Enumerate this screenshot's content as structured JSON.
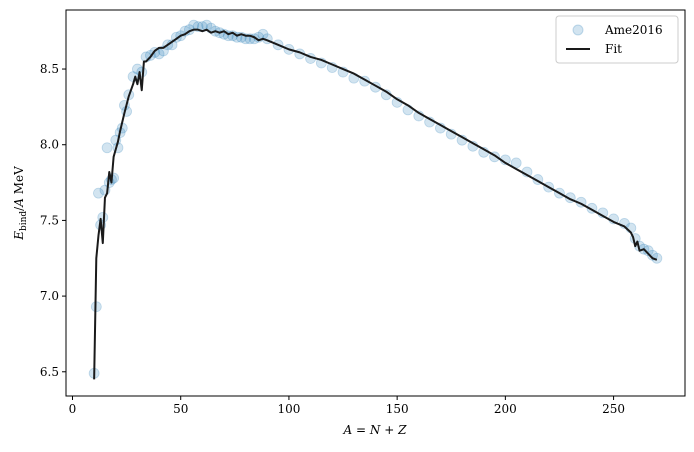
{
  "chart_data": {
    "type": "scatter",
    "xlabel": "A = N + Z",
    "ylabel": "E_bind / A MeV",
    "xlim": [
      -3,
      283
    ],
    "ylim": [
      6.34,
      8.89
    ],
    "xticks": [
      0,
      50,
      100,
      150,
      200,
      250
    ],
    "yticks": [
      6.5,
      7.0,
      7.5,
      8.0,
      8.5
    ],
    "xtick_labels": [
      "0",
      "50",
      "100",
      "150",
      "200",
      "250"
    ],
    "ytick_labels": [
      "6.5",
      "7.0",
      "7.5",
      "8.0",
      "8.5"
    ],
    "grid": false,
    "legend_position": "top-right",
    "series": [
      {
        "name": "Ame2016",
        "kind": "scatter",
        "color": "#1f77b4",
        "opacity": 0.2,
        "points": [
          [
            10,
            6.49
          ],
          [
            11,
            6.93
          ],
          [
            12,
            7.68
          ],
          [
            13,
            7.47
          ],
          [
            14,
            7.52
          ],
          [
            15,
            7.7
          ],
          [
            16,
            7.98
          ],
          [
            17,
            7.75
          ],
          [
            18,
            7.77
          ],
          [
            19,
            7.78
          ],
          [
            20,
            8.03
          ],
          [
            21,
            7.98
          ],
          [
            22,
            8.08
          ],
          [
            23,
            8.11
          ],
          [
            24,
            8.26
          ],
          [
            25,
            8.22
          ],
          [
            26,
            8.33
          ],
          [
            28,
            8.45
          ],
          [
            30,
            8.5
          ],
          [
            32,
            8.48
          ],
          [
            34,
            8.58
          ],
          [
            36,
            8.59
          ],
          [
            38,
            8.61
          ],
          [
            40,
            8.6
          ],
          [
            42,
            8.62
          ],
          [
            44,
            8.66
          ],
          [
            46,
            8.66
          ],
          [
            48,
            8.71
          ],
          [
            50,
            8.72
          ],
          [
            52,
            8.75
          ],
          [
            54,
            8.76
          ],
          [
            56,
            8.79
          ],
          [
            58,
            8.78
          ],
          [
            60,
            8.78
          ],
          [
            62,
            8.79
          ],
          [
            64,
            8.77
          ],
          [
            66,
            8.75
          ],
          [
            68,
            8.74
          ],
          [
            70,
            8.73
          ],
          [
            72,
            8.72
          ],
          [
            74,
            8.72
          ],
          [
            76,
            8.71
          ],
          [
            78,
            8.71
          ],
          [
            80,
            8.7
          ],
          [
            82,
            8.7
          ],
          [
            84,
            8.7
          ],
          [
            86,
            8.71
          ],
          [
            88,
            8.73
          ],
          [
            90,
            8.7
          ],
          [
            95,
            8.66
          ],
          [
            100,
            8.63
          ],
          [
            105,
            8.6
          ],
          [
            110,
            8.57
          ],
          [
            115,
            8.54
          ],
          [
            120,
            8.51
          ],
          [
            125,
            8.48
          ],
          [
            130,
            8.44
          ],
          [
            135,
            8.42
          ],
          [
            140,
            8.38
          ],
          [
            145,
            8.33
          ],
          [
            150,
            8.28
          ],
          [
            155,
            8.23
          ],
          [
            160,
            8.19
          ],
          [
            165,
            8.15
          ],
          [
            170,
            8.11
          ],
          [
            175,
            8.07
          ],
          [
            180,
            8.03
          ],
          [
            185,
            7.99
          ],
          [
            190,
            7.95
          ],
          [
            195,
            7.92
          ],
          [
            200,
            7.9
          ],
          [
            205,
            7.88
          ],
          [
            210,
            7.82
          ],
          [
            215,
            7.77
          ],
          [
            220,
            7.72
          ],
          [
            225,
            7.68
          ],
          [
            230,
            7.65
          ],
          [
            235,
            7.62
          ],
          [
            240,
            7.58
          ],
          [
            245,
            7.55
          ],
          [
            250,
            7.51
          ],
          [
            255,
            7.48
          ],
          [
            258,
            7.45
          ],
          [
            260,
            7.38
          ],
          [
            262,
            7.33
          ],
          [
            264,
            7.31
          ],
          [
            266,
            7.3
          ],
          [
            268,
            7.27
          ],
          [
            270,
            7.25
          ]
        ]
      },
      {
        "name": "Fit",
        "kind": "line",
        "color": "#1a1a1a",
        "points": [
          [
            10,
            6.45
          ],
          [
            11,
            7.25
          ],
          [
            12,
            7.4
          ],
          [
            13,
            7.51
          ],
          [
            14,
            7.35
          ],
          [
            15,
            7.65
          ],
          [
            16,
            7.68
          ],
          [
            17,
            7.82
          ],
          [
            18,
            7.75
          ],
          [
            19,
            7.92
          ],
          [
            20,
            7.97
          ],
          [
            21,
            8.02
          ],
          [
            22,
            8.09
          ],
          [
            24,
            8.21
          ],
          [
            26,
            8.32
          ],
          [
            28,
            8.4
          ],
          [
            29,
            8.45
          ],
          [
            30,
            8.4
          ],
          [
            31,
            8.48
          ],
          [
            32,
            8.36
          ],
          [
            33,
            8.55
          ],
          [
            34,
            8.55
          ],
          [
            36,
            8.58
          ],
          [
            38,
            8.62
          ],
          [
            40,
            8.64
          ],
          [
            42,
            8.64
          ],
          [
            44,
            8.66
          ],
          [
            46,
            8.68
          ],
          [
            48,
            8.7
          ],
          [
            50,
            8.72
          ],
          [
            52,
            8.73
          ],
          [
            54,
            8.75
          ],
          [
            56,
            8.76
          ],
          [
            58,
            8.76
          ],
          [
            60,
            8.75
          ],
          [
            62,
            8.76
          ],
          [
            64,
            8.74
          ],
          [
            66,
            8.75
          ],
          [
            68,
            8.74
          ],
          [
            70,
            8.75
          ],
          [
            72,
            8.73
          ],
          [
            74,
            8.74
          ],
          [
            76,
            8.72
          ],
          [
            78,
            8.73
          ],
          [
            80,
            8.72
          ],
          [
            82,
            8.72
          ],
          [
            84,
            8.71
          ],
          [
            86,
            8.69
          ],
          [
            88,
            8.7
          ],
          [
            90,
            8.69
          ],
          [
            95,
            8.66
          ],
          [
            100,
            8.63
          ],
          [
            105,
            8.61
          ],
          [
            110,
            8.58
          ],
          [
            115,
            8.56
          ],
          [
            120,
            8.53
          ],
          [
            125,
            8.5
          ],
          [
            130,
            8.47
          ],
          [
            135,
            8.43
          ],
          [
            140,
            8.39
          ],
          [
            145,
            8.35
          ],
          [
            150,
            8.3
          ],
          [
            155,
            8.26
          ],
          [
            160,
            8.21
          ],
          [
            165,
            8.17
          ],
          [
            170,
            8.13
          ],
          [
            175,
            8.09
          ],
          [
            180,
            8.05
          ],
          [
            185,
            8.01
          ],
          [
            190,
            7.97
          ],
          [
            195,
            7.93
          ],
          [
            200,
            7.88
          ],
          [
            205,
            7.84
          ],
          [
            210,
            7.8
          ],
          [
            215,
            7.76
          ],
          [
            220,
            7.72
          ],
          [
            225,
            7.68
          ],
          [
            230,
            7.64
          ],
          [
            235,
            7.61
          ],
          [
            240,
            7.57
          ],
          [
            245,
            7.53
          ],
          [
            250,
            7.49
          ],
          [
            255,
            7.46
          ],
          [
            258,
            7.42
          ],
          [
            259,
            7.39
          ],
          [
            260,
            7.33
          ],
          [
            261,
            7.36
          ],
          [
            262,
            7.3
          ],
          [
            264,
            7.31
          ],
          [
            266,
            7.28
          ],
          [
            268,
            7.25
          ],
          [
            270,
            7.24
          ]
        ]
      }
    ]
  }
}
